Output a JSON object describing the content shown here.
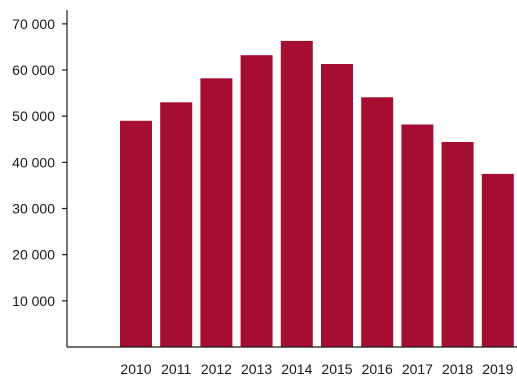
{
  "chart_data": {
    "type": "bar",
    "title": "",
    "xlabel": "",
    "ylabel": "",
    "categories": [
      "2010",
      "2011",
      "2012",
      "2013",
      "2014",
      "2015",
      "2016",
      "2017",
      "2018",
      "2019"
    ],
    "values": [
      49000,
      53000,
      58200,
      63200,
      66300,
      61300,
      54100,
      48200,
      44400,
      37500
    ],
    "ylim": [
      0,
      73000
    ],
    "yticks": [
      10000,
      20000,
      30000,
      40000,
      50000,
      60000,
      70000
    ],
    "ytick_labels": [
      "10 000",
      "20 000",
      "30 000",
      "40 000",
      "50 000",
      "60 000",
      "70 000"
    ],
    "grid": false,
    "legend": "none",
    "bar_color": "#a50d31"
  }
}
